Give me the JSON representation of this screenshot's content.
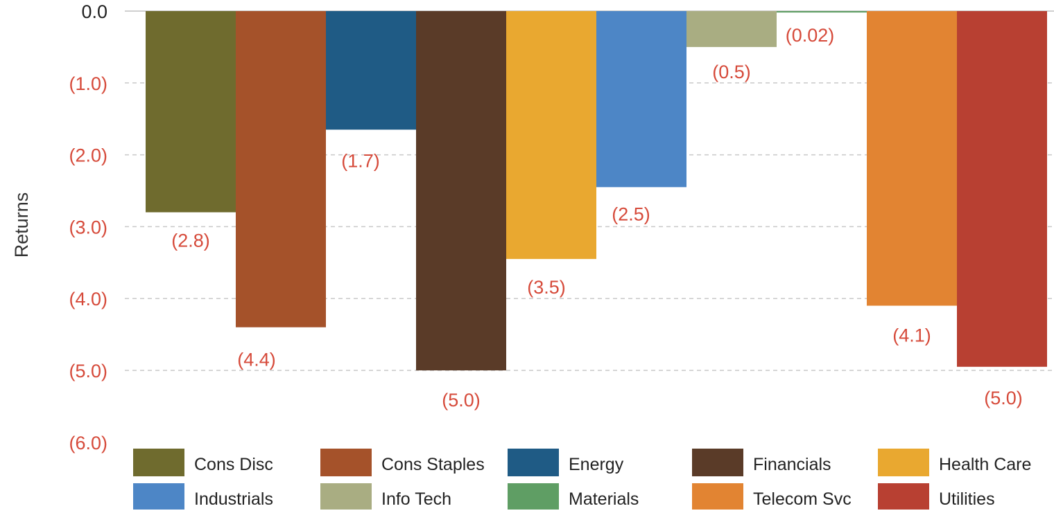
{
  "chart_data": {
    "type": "bar",
    "title": "",
    "xlabel": "",
    "ylabel": "Returns",
    "ylim": [
      -6.0,
      0.0
    ],
    "y_ticks": [
      {
        "value": 0.0,
        "label": "0.0"
      },
      {
        "value": -1.0,
        "label": "(1.0)"
      },
      {
        "value": -2.0,
        "label": "(2.0)"
      },
      {
        "value": -3.0,
        "label": "(3.0)"
      },
      {
        "value": -4.0,
        "label": "(4.0)"
      },
      {
        "value": -5.0,
        "label": "(5.0)"
      },
      {
        "value": -6.0,
        "label": "(6.0)"
      }
    ],
    "grid": true,
    "legend_position": "bottom",
    "series": [
      {
        "name": "Cons Disc",
        "value": -2.8,
        "label": "(2.8)",
        "color": "#6f6b2e"
      },
      {
        "name": "Cons Staples",
        "value": -4.4,
        "label": "(4.4)",
        "color": "#a5522a"
      },
      {
        "name": "Energy",
        "value": -1.65,
        "label": "(1.7)",
        "color": "#1f5b85"
      },
      {
        "name": "Financials",
        "value": -5.0,
        "label": "(5.0)",
        "color": "#5a3b28"
      },
      {
        "name": "Health Care",
        "value": -3.45,
        "label": "(3.5)",
        "color": "#e9a830"
      },
      {
        "name": "Industrials",
        "value": -2.45,
        "label": "(2.5)",
        "color": "#4d86c6"
      },
      {
        "name": "Info Tech",
        "value": -0.5,
        "label": "(0.5)",
        "color": "#a9ad82"
      },
      {
        "name": "Materials",
        "value": -0.02,
        "label": "(0.02)",
        "color": "#5f9e64"
      },
      {
        "name": "Telecom Svc",
        "value": -4.1,
        "label": "(4.1)",
        "color": "#e28432"
      },
      {
        "name": "Utilities",
        "value": -4.95,
        "label": "(5.0)",
        "color": "#b84032"
      }
    ],
    "legend": [
      "Cons Disc",
      "Cons Staples",
      "Energy",
      "Financials",
      "Health Care",
      "Industrials",
      "Info Tech",
      "Materials",
      "Telecom Svc",
      "Utilities"
    ],
    "label_color": "#d64a3a",
    "tick_label_color": "#d64a3a",
    "zero_tick_color": "#222222"
  }
}
